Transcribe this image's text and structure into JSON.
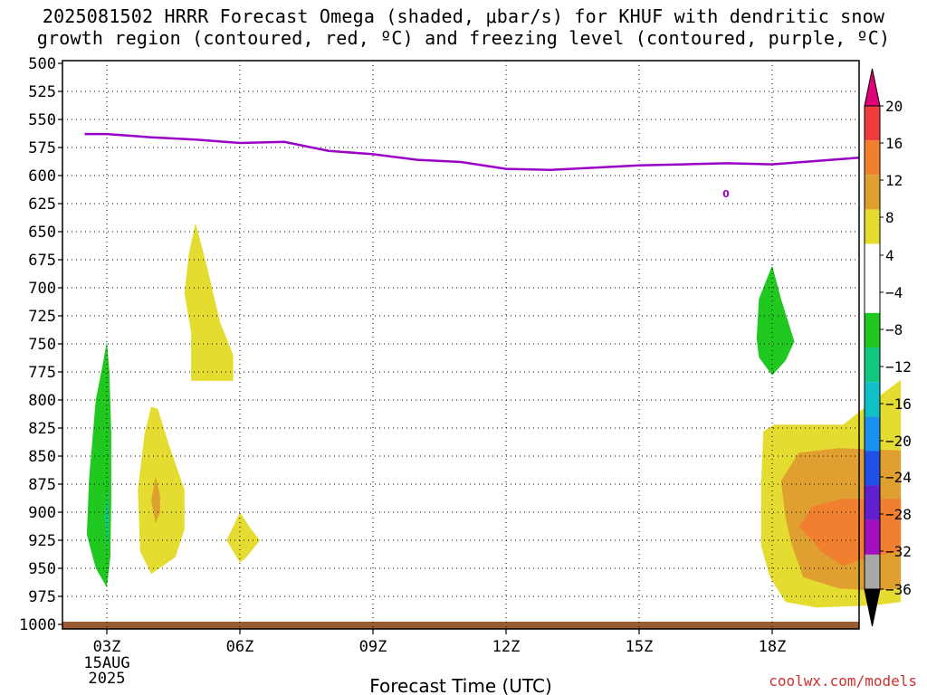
{
  "title": {
    "line1": "2025081502 HRRR Forecast Omega (shaded, μbar/s) for KHUF with dendritic snow",
    "line2": "growth region (contoured, red, ºC) and freezing level (contoured, purple, ºC)"
  },
  "x_axis": {
    "label": "Forecast Time (UTC)",
    "ticks": [
      "03Z",
      "06Z",
      "09Z",
      "12Z",
      "15Z",
      "18Z"
    ],
    "date_line1": "15AUG",
    "date_line2": "2025"
  },
  "credit": "coolwx.com/models",
  "colorbar": {
    "labels": [
      "20",
      "16",
      "12",
      "8",
      "4",
      "-4",
      "-8",
      "-12",
      "-16",
      "-20",
      "-24",
      "-28",
      "-32",
      "-36"
    ],
    "colors": {
      "top_arrow": "#e0007a",
      "gt16": "#f03c3c",
      "12_16": "#f08030",
      "8_12": "#e0a030",
      "4_8": "#e4dc30",
      "neutral": "#ffffff",
      "m8_m4": "#20c820",
      "m12_m8": "#10c880",
      "m16_m12": "#10c0c8",
      "m20_m16": "#1890f0",
      "m24_m20": "#2050e8",
      "m28_m24": "#6020d0",
      "m32_m28": "#a010c0",
      "m36_m32": "#a8a8a8",
      "bottom_arrow": "#000000"
    }
  },
  "chart_data": {
    "type": "heatmap",
    "title": "2025081502 HRRR Forecast Omega (shaded, μbar/s) for KHUF with dendritic snow growth region (contoured, red, ºC) and freezing level (contoured, purple, ºC)",
    "xlabel": "Forecast Time (UTC)",
    "ylabel": "",
    "y_ticks": [
      500,
      525,
      550,
      575,
      600,
      625,
      650,
      675,
      700,
      725,
      750,
      775,
      800,
      825,
      850,
      875,
      900,
      925,
      950,
      975,
      1000
    ],
    "ylim": [
      1000,
      500
    ],
    "x_ticks": [
      "03Z",
      "06Z",
      "09Z",
      "12Z",
      "15Z",
      "18Z"
    ],
    "freezing_level": {
      "label": "0",
      "color": "#9a00c8",
      "hours": [
        2.5,
        3.0,
        4.0,
        5.0,
        6.0,
        7.0,
        8.0,
        9.0,
        10.0,
        11.0,
        12.0,
        13.0,
        14.0,
        15.0,
        16.0,
        17.0,
        18.0,
        19.0,
        20.0
      ],
      "pressure_hpa": [
        563,
        563,
        566,
        568,
        571,
        570,
        578,
        581,
        586,
        588,
        594,
        595,
        593,
        591,
        590,
        589,
        590,
        587,
        584
      ]
    },
    "omega_regions": [
      {
        "bin": "-8 to -4",
        "hour_center": 3.0,
        "p_top": 748,
        "p_bottom": 967
      },
      {
        "bin": "-12 to -8",
        "hour_center": 3.0,
        "p_top": 880,
        "p_bottom": 935
      },
      {
        "bin": "4 to 8",
        "hour_center": 5.0,
        "p_top": 642,
        "p_bottom": 783
      },
      {
        "bin": "4 to 8",
        "hour_center": 4.1,
        "p_top": 806,
        "p_bottom": 955
      },
      {
        "bin": "8 to 12",
        "hour_center": 4.1,
        "p_top": 868,
        "p_bottom": 910
      },
      {
        "bin": "4 to 8",
        "hour_center": 6.0,
        "p_top": 900,
        "p_bottom": 945
      },
      {
        "bin": "-8 to -4",
        "hour_center": 18.0,
        "p_top": 680,
        "p_bottom": 778
      },
      {
        "bin": "4 to 8",
        "hour_center": 19.0,
        "p_top": 782,
        "p_bottom": 985
      },
      {
        "bin": "8 to 12",
        "hour_center": 19.2,
        "p_top": 840,
        "p_bottom": 970
      },
      {
        "bin": "12 to 16",
        "hour_center": 19.5,
        "p_top": 890,
        "p_bottom": 948
      }
    ],
    "surface_pressure_hpa": 1000
  }
}
